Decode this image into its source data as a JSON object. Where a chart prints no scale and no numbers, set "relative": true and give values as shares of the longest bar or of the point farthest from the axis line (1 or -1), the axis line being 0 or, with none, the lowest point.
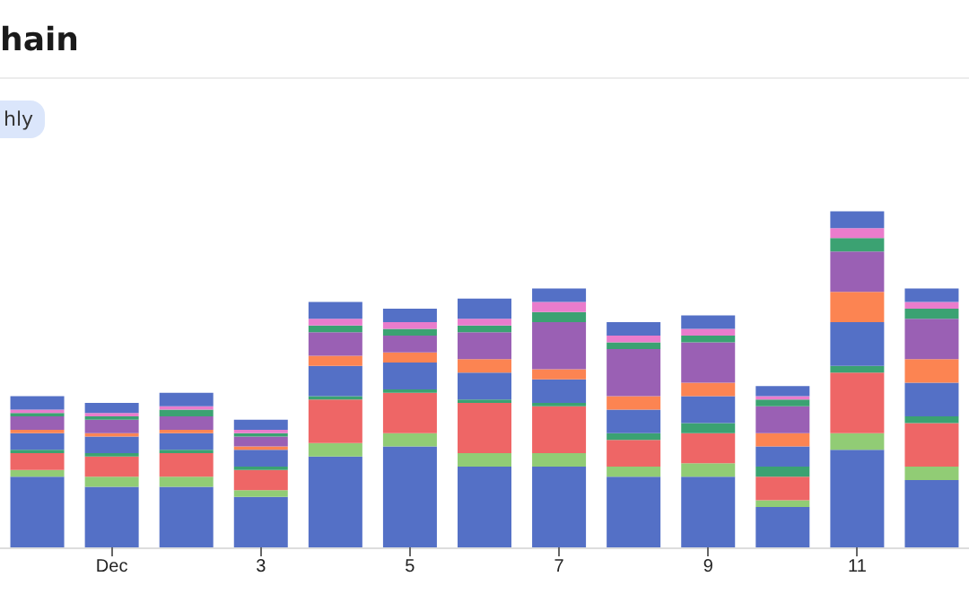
{
  "chart_data": {
    "type": "bar",
    "title": "hain",
    "annotations": [
      "hly"
    ],
    "stacked": true,
    "relative": true,
    "categories": [
      null,
      "Dec",
      null,
      "3",
      null,
      "5",
      null,
      "7",
      null,
      "9",
      null,
      "11",
      null
    ],
    "series": [
      {
        "color": "#5470c6",
        "values": [
          0.21,
          0.18,
          0.18,
          0.15,
          0.27,
          0.3,
          0.24,
          0.24,
          0.21,
          0.21,
          0.12,
          0.29,
          0.2
        ]
      },
      {
        "color": "#91cc75",
        "values": [
          0.02,
          0.03,
          0.03,
          0.02,
          0.04,
          0.04,
          0.04,
          0.04,
          0.03,
          0.04,
          0.02,
          0.05,
          0.04
        ]
      },
      {
        "color": "#ee6666",
        "values": [
          0.05,
          0.06,
          0.07,
          0.06,
          0.13,
          0.12,
          0.15,
          0.14,
          0.08,
          0.09,
          0.07,
          0.18,
          0.13
        ]
      },
      {
        "color": "#3ba272",
        "values": [
          0.01,
          0.01,
          0.01,
          0.01,
          0.01,
          0.01,
          0.01,
          0.01,
          0.02,
          0.03,
          0.03,
          0.02,
          0.02
        ]
      },
      {
        "color": "#5470c6",
        "values": [
          0.05,
          0.05,
          0.05,
          0.05,
          0.09,
          0.08,
          0.08,
          0.07,
          0.07,
          0.08,
          0.06,
          0.13,
          0.1
        ]
      },
      {
        "color": "#fc8452",
        "values": [
          0.01,
          0.01,
          0.01,
          0.01,
          0.03,
          0.03,
          0.04,
          0.03,
          0.04,
          0.04,
          0.04,
          0.09,
          0.07
        ]
      },
      {
        "color": "#9a60b4",
        "values": [
          0.04,
          0.04,
          0.04,
          0.03,
          0.07,
          0.05,
          0.08,
          0.14,
          0.14,
          0.12,
          0.08,
          0.12,
          0.12
        ]
      },
      {
        "color": "#3ba272",
        "values": [
          0.01,
          0.01,
          0.02,
          0.01,
          0.02,
          0.02,
          0.02,
          0.03,
          0.02,
          0.02,
          0.02,
          0.04,
          0.03
        ]
      },
      {
        "color": "#ea7ccc",
        "values": [
          0.01,
          0.01,
          0.01,
          0.01,
          0.02,
          0.02,
          0.02,
          0.03,
          0.02,
          0.02,
          0.01,
          0.03,
          0.02
        ]
      },
      {
        "color": "#5470c6",
        "values": [
          0.04,
          0.03,
          0.04,
          0.03,
          0.05,
          0.04,
          0.06,
          0.04,
          0.04,
          0.04,
          0.03,
          0.05,
          0.04
        ]
      }
    ]
  }
}
